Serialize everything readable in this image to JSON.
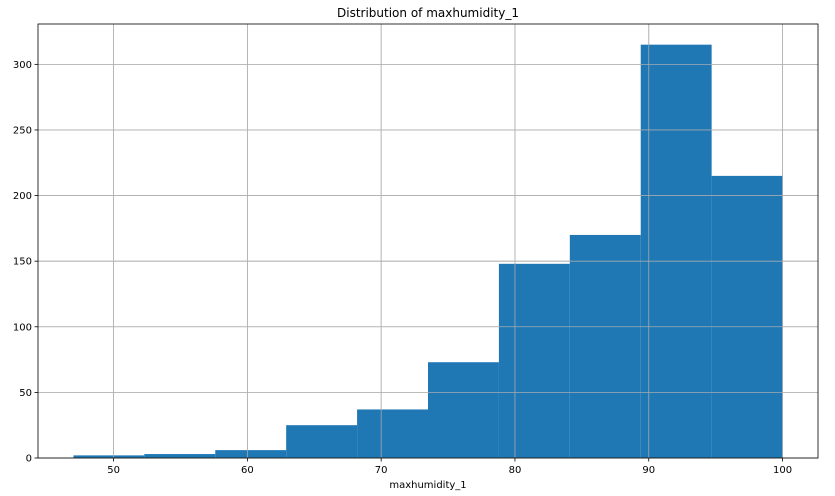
{
  "chart_data": {
    "type": "bar",
    "title": "Distribution of maxhumidity_1",
    "xlabel": "maxhumidity_1",
    "ylabel": "",
    "bin_edges": [
      47,
      52.3,
      57.6,
      62.9,
      68.2,
      73.5,
      78.8,
      84.1,
      89.4,
      94.7,
      100
    ],
    "values": [
      2,
      3,
      6,
      25,
      37,
      73,
      148,
      170,
      315,
      215
    ],
    "xlim": [
      44.35,
      102.65
    ],
    "ylim": [
      0,
      330.75
    ],
    "xticks": [
      50,
      60,
      70,
      80,
      90,
      100
    ],
    "yticks": [
      0,
      50,
      100,
      150,
      200,
      250,
      300
    ],
    "grid": true,
    "bar_color": "#1f77b4"
  }
}
